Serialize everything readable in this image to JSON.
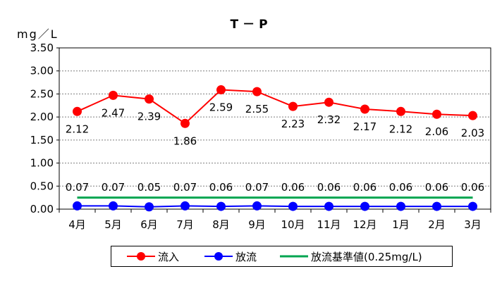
{
  "chart_data": {
    "type": "line",
    "title": "T－P",
    "ylabel": "mg／L",
    "xlabel": "",
    "categories": [
      "4月",
      "5月",
      "6月",
      "7月",
      "8月",
      "9月",
      "10月",
      "11月",
      "12月",
      "1月",
      "2月",
      "3月"
    ],
    "ylim": [
      0,
      3.5
    ],
    "yticks": [
      "0.00",
      "0.50",
      "1.00",
      "1.50",
      "2.00",
      "2.50",
      "3.00",
      "3.50"
    ],
    "grid": true,
    "legend_position": "bottom",
    "series": [
      {
        "name": "流入",
        "color": "#ff0000",
        "marker": "circle",
        "values": [
          2.12,
          2.47,
          2.39,
          1.86,
          2.59,
          2.55,
          2.23,
          2.32,
          2.17,
          2.12,
          2.06,
          2.03
        ],
        "labels": [
          "2.12",
          "2.47",
          "2.39",
          "1.86",
          "2.59",
          "2.55",
          "2.23",
          "2.32",
          "2.17",
          "2.12",
          "2.06",
          "2.03"
        ]
      },
      {
        "name": "放流",
        "color": "#0000ff",
        "marker": "circle",
        "values": [
          0.07,
          0.07,
          0.05,
          0.07,
          0.06,
          0.07,
          0.06,
          0.06,
          0.06,
          0.06,
          0.06,
          0.06
        ],
        "labels": [
          "0.07",
          "0.07",
          "0.05",
          "0.07",
          "0.06",
          "0.07",
          "0.06",
          "0.06",
          "0.06",
          "0.06",
          "0.06",
          "0.06"
        ]
      },
      {
        "name": "放流基準値(0.25mg/L)",
        "color": "#00a550",
        "marker": "none",
        "values": [
          0.25,
          0.25,
          0.25,
          0.25,
          0.25,
          0.25,
          0.25,
          0.25,
          0.25,
          0.25,
          0.25,
          0.25
        ]
      }
    ]
  }
}
